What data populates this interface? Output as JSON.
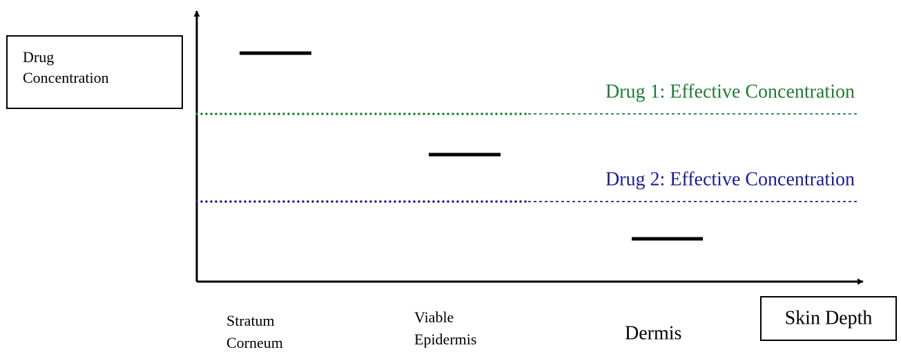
{
  "y_axis_label": {
    "lines": [
      "Drug",
      "Concentration"
    ]
  },
  "x_axis_label": "Skin Depth",
  "thresholds": [
    {
      "label": "Drug 1: Effective Concentration",
      "color": "#217a35"
    },
    {
      "label": "Drug 2: Effective Concentration",
      "color": "#1c1c8a"
    }
  ],
  "layers": [
    {
      "lines": [
        "Stratum",
        "Corneum"
      ]
    },
    {
      "lines": [
        "Viable",
        "Epidermis"
      ]
    },
    {
      "lines": [
        "Dermis"
      ]
    }
  ]
}
